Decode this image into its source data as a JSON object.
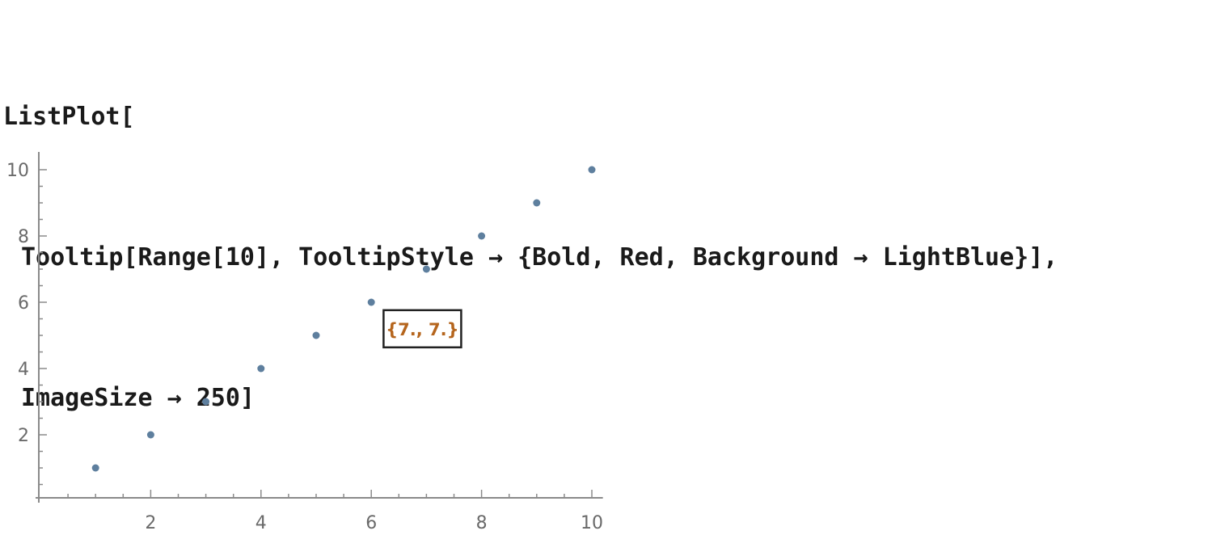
{
  "code": {
    "line1": "ListPlot[",
    "line2": "Tooltip[Range[10], TooltipStyle → {Bold, Red, Background → LightBlue}],",
    "line3": "ImageSize → 250]"
  },
  "tooltip": {
    "text": "{7., 7.}",
    "text_color": "#b5651d",
    "border_color": "#222222",
    "data_x": 7,
    "data_y": 5.2
  },
  "colors": {
    "point": "#5e7f9e",
    "axis": "#8a8a8a"
  },
  "chart_data": {
    "type": "scatter",
    "x": [
      1,
      2,
      3,
      4,
      5,
      6,
      7,
      8,
      9,
      10
    ],
    "y": [
      1,
      2,
      3,
      4,
      5,
      6,
      7,
      8,
      9,
      10
    ],
    "xlim": [
      0,
      10.2
    ],
    "ylim": [
      0,
      10.4
    ],
    "x_ticks": [
      2,
      4,
      6,
      8,
      10
    ],
    "y_ticks": [
      2,
      4,
      6,
      8,
      10
    ],
    "x_tick_labels": [
      "2",
      "4",
      "6",
      "8",
      "10"
    ],
    "y_tick_labels": [
      "2",
      "4",
      "6",
      "8",
      "10"
    ],
    "title": "",
    "xlabel": "",
    "ylabel": ""
  }
}
